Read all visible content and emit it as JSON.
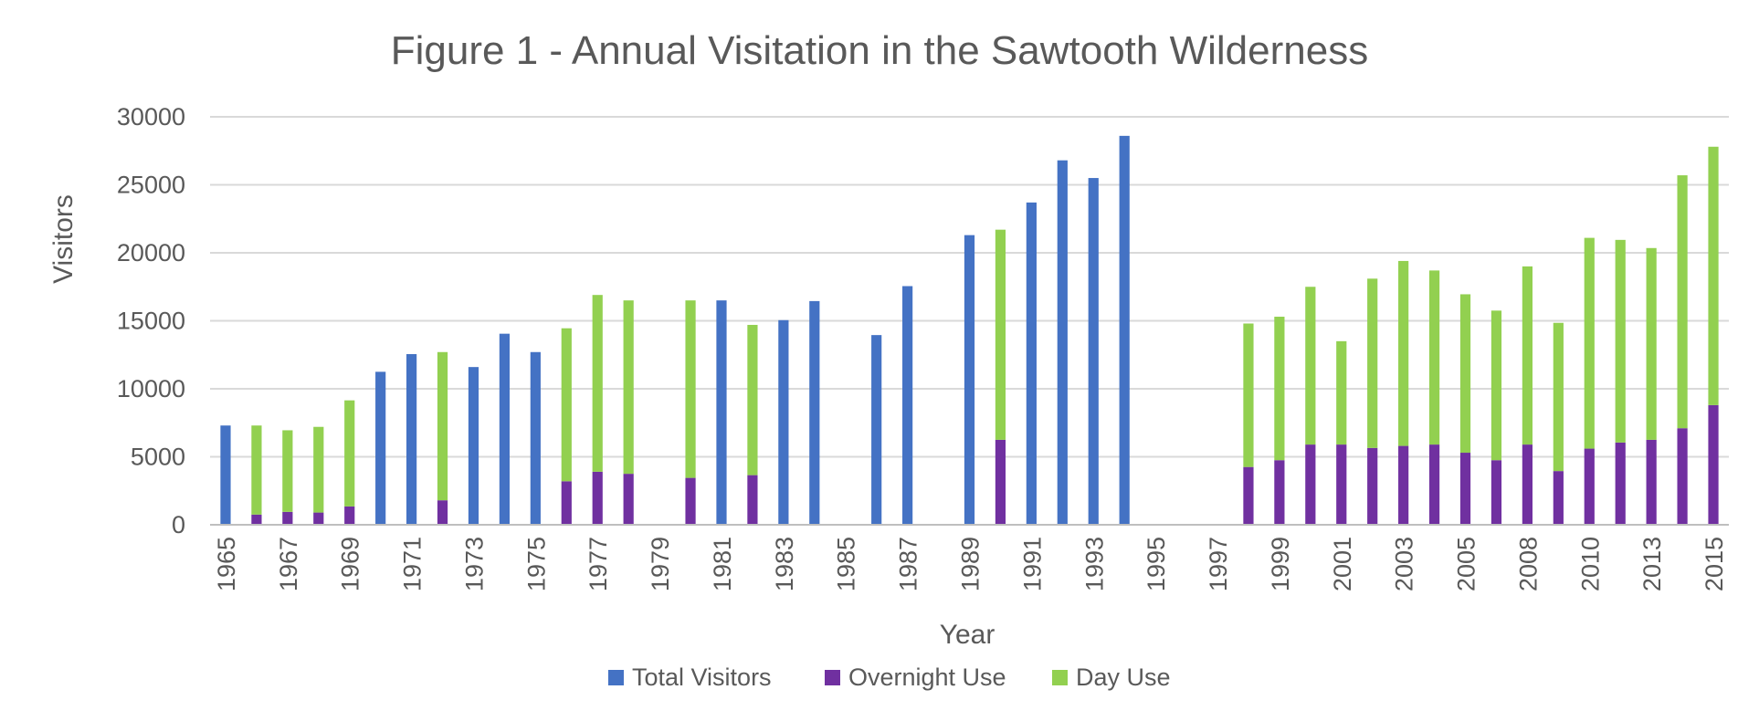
{
  "chart_data": {
    "type": "bar",
    "stacked": true,
    "title": "Figure 1 - Annual Visitation in the Sawtooth Wilderness",
    "xlabel": "Year",
    "ylabel": "Visitors",
    "ylim": [
      0,
      30000
    ],
    "yticks": [
      0,
      5000,
      10000,
      15000,
      20000,
      25000,
      30000
    ],
    "grid": "horizontal",
    "legend_position": "bottom",
    "xtick_labels": [
      "1965",
      "1967",
      "1969",
      "1971",
      "1973",
      "1975",
      "1977",
      "1979",
      "1981",
      "1983",
      "1985",
      "1987",
      "1989",
      "1991",
      "1993",
      "1995",
      "1997",
      "1999",
      "2001",
      "2003",
      "2005",
      "2008",
      "2010",
      "2013",
      "2015"
    ],
    "slots": [
      {
        "year": "1965",
        "total": 7300
      },
      {
        "year": "1966",
        "overnight": 750,
        "day": 6550
      },
      {
        "year": "1967",
        "overnight": 950,
        "day": 6000
      },
      {
        "year": "1968",
        "overnight": 900,
        "day": 6300
      },
      {
        "year": "1969",
        "overnight": 1350,
        "day": 7800
      },
      {
        "year": "1970",
        "total": 11250
      },
      {
        "year": "1971",
        "total": 12550
      },
      {
        "year": "1972",
        "overnight": 1800,
        "day": 10900
      },
      {
        "year": "1973",
        "total": 11600
      },
      {
        "year": "1974",
        "total": 14050
      },
      {
        "year": "1975",
        "total": 12700
      },
      {
        "year": "1976",
        "overnight": 3200,
        "day": 11250
      },
      {
        "year": "1977",
        "overnight": 3900,
        "day": 13000
      },
      {
        "year": "1978",
        "overnight": 3750,
        "day": 12750
      },
      {
        "year": "1979"
      },
      {
        "year": "1980",
        "overnight": 3450,
        "day": 13050
      },
      {
        "year": "1981",
        "total": 16500
      },
      {
        "year": "1982",
        "overnight": 3650,
        "day": 11050
      },
      {
        "year": "1983",
        "total": 15050
      },
      {
        "year": "1984",
        "total": 16450
      },
      {
        "year": "1985"
      },
      {
        "year": "1986",
        "total": 13950
      },
      {
        "year": "1987",
        "total": 17550
      },
      {
        "year": "1988"
      },
      {
        "year": "1989",
        "total": 21300
      },
      {
        "year": "1990",
        "overnight": 6250,
        "day": 15450
      },
      {
        "year": "1991",
        "total": 23700
      },
      {
        "year": "1992",
        "total": 26800
      },
      {
        "year": "1993",
        "total": 25500
      },
      {
        "year": "1994",
        "total": 28600
      },
      {
        "year": "1995"
      },
      {
        "year": "1996"
      },
      {
        "year": "1997"
      },
      {
        "year": "1998",
        "overnight": 4250,
        "day": 10550
      },
      {
        "year": "1999",
        "overnight": 4750,
        "day": 10550
      },
      {
        "year": "2000",
        "overnight": 5900,
        "day": 11600
      },
      {
        "year": "2001",
        "overnight": 5900,
        "day": 7600
      },
      {
        "year": "2002",
        "overnight": 5650,
        "day": 12450
      },
      {
        "year": "2003",
        "overnight": 5800,
        "day": 13600
      },
      {
        "year": "2004",
        "overnight": 5900,
        "day": 12800
      },
      {
        "year": "2005",
        "overnight": 5300,
        "day": 11650
      },
      {
        "year": "2007",
        "overnight": 4750,
        "day": 11000
      },
      {
        "year": "2008",
        "overnight": 5900,
        "day": 13100
      },
      {
        "year": "2009",
        "overnight": 3950,
        "day": 10900
      },
      {
        "year": "2010",
        "overnight": 5600,
        "day": 15500
      },
      {
        "year": "2012",
        "overnight": 6050,
        "day": 14900
      },
      {
        "year": "2013",
        "overnight": 6250,
        "day": 14100
      },
      {
        "year": "2014",
        "overnight": 7100,
        "day": 18600
      },
      {
        "year": "2015",
        "overnight": 8800,
        "day": 19000
      }
    ],
    "series": [
      {
        "key": "total",
        "name": "Total Visitors",
        "color": "#4472C4"
      },
      {
        "key": "overnight",
        "name": "Overnight Use",
        "color": "#7030A0"
      },
      {
        "key": "day",
        "name": "Day Use",
        "color": "#92D050"
      }
    ]
  }
}
